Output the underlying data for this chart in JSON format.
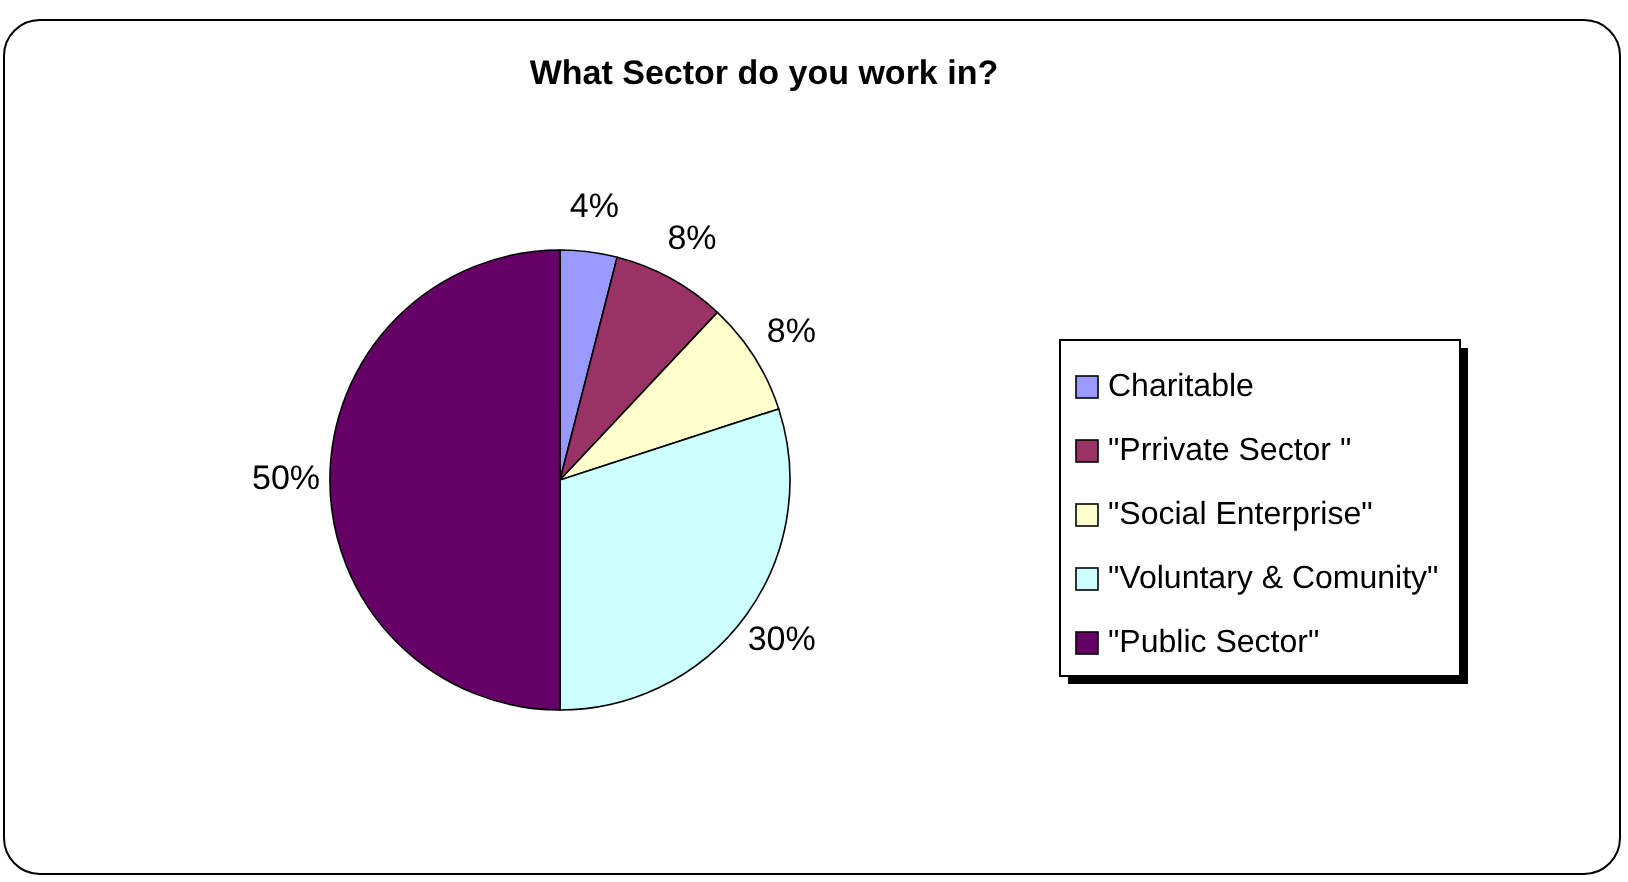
{
  "chart_data": {
    "type": "pie",
    "title": "What Sector do you work in?",
    "categories": [
      "Charitable",
      "\"Prrivate Sector \"",
      "\"Social Enterprise\"",
      "\"Voluntary & Comunity\"",
      "\"Public Sector\""
    ],
    "values": [
      4,
      8,
      8,
      30,
      50
    ],
    "colors": [
      "#9999ff",
      "#993366",
      "#ffffcc",
      "#ccffff",
      "#660066"
    ],
    "value_labels": [
      "4%",
      "8%",
      "8%",
      "30%",
      "50%"
    ],
    "legend": "right"
  }
}
